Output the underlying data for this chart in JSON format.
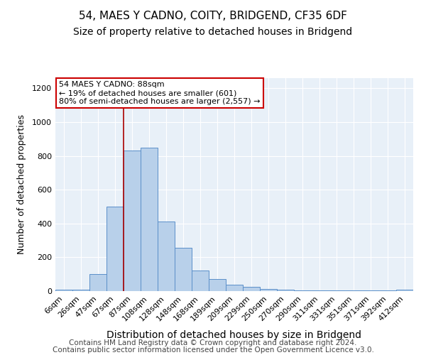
{
  "title": "54, MAES Y CADNO, COITY, BRIDGEND, CF35 6DF",
  "subtitle": "Size of property relative to detached houses in Bridgend",
  "xlabel": "Distribution of detached houses by size in Bridgend",
  "ylabel": "Number of detached properties",
  "categories": [
    "6sqm",
    "26sqm",
    "47sqm",
    "67sqm",
    "87sqm",
    "108sqm",
    "128sqm",
    "148sqm",
    "168sqm",
    "189sqm",
    "209sqm",
    "229sqm",
    "250sqm",
    "270sqm",
    "290sqm",
    "311sqm",
    "331sqm",
    "351sqm",
    "371sqm",
    "392sqm",
    "412sqm"
  ],
  "values": [
    8,
    10,
    100,
    500,
    830,
    850,
    410,
    255,
    120,
    70,
    38,
    25,
    13,
    8,
    5,
    5,
    5,
    5,
    3,
    5,
    8
  ],
  "bar_color": "#b8d0ea",
  "bar_edge_color": "#5b8fc9",
  "marker_bin_index": 4,
  "marker_color": "#aa0000",
  "annotation_text": "54 MAES Y CADNO: 88sqm\n← 19% of detached houses are smaller (601)\n80% of semi-detached houses are larger (2,557) →",
  "annotation_box_color": "#ffffff",
  "annotation_box_edge": "#cc0000",
  "footer_line1": "Contains HM Land Registry data © Crown copyright and database right 2024.",
  "footer_line2": "Contains public sector information licensed under the Open Government Licence v3.0.",
  "background_color": "#e8f0f8",
  "ylim": [
    0,
    1260
  ],
  "yticks": [
    0,
    200,
    400,
    600,
    800,
    1000,
    1200
  ],
  "title_fontsize": 11,
  "subtitle_fontsize": 10,
  "xlabel_fontsize": 10,
  "ylabel_fontsize": 9,
  "tick_fontsize": 8,
  "footer_fontsize": 7.5,
  "annot_fontsize": 8
}
